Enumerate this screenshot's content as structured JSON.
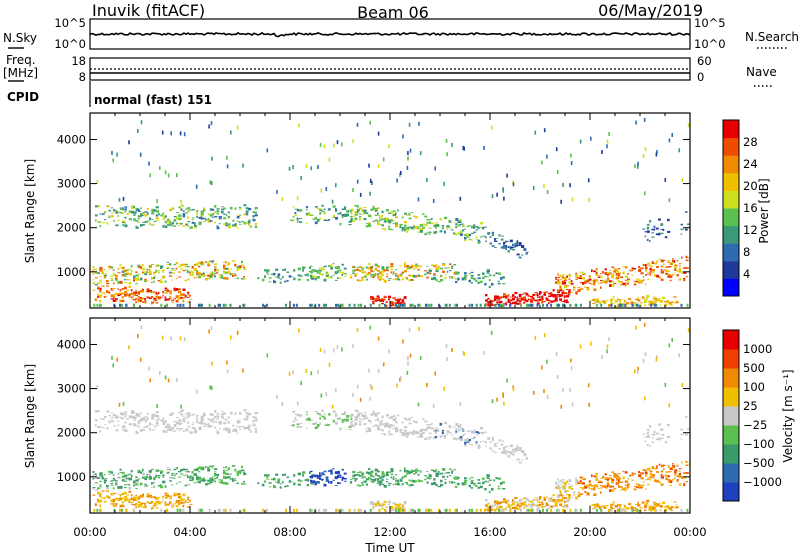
{
  "header": {
    "station": "Inuvik (fitACF)",
    "beam": "Beam 06",
    "date": "06/May/2019"
  },
  "noise_panel": {
    "left_label": "N.Sky",
    "right_label": "N.Search",
    "left_ticks": [
      "10^5",
      "10^0"
    ],
    "right_ticks": [
      "10^5",
      "10^0"
    ]
  },
  "freq_panel": {
    "left_label_line1": "Freq.",
    "left_label_line2": "[MHz]",
    "right_label": "Nave",
    "left_ticks": [
      "18",
      "8"
    ],
    "right_ticks": [
      "60",
      "0"
    ]
  },
  "cpid": {
    "label": "CPID",
    "value": "normal (fast) 151"
  },
  "colors": {
    "power_scale": [
      "#0000ff",
      "#1e3a9a",
      "#2f6bb0",
      "#3a9a78",
      "#5cc050",
      "#cfe020",
      "#f0c000",
      "#f08a00",
      "#ee4d00",
      "#e60000"
    ],
    "velocity_scale": [
      "#2040c0",
      "#2f6bb0",
      "#3a9a6a",
      "#5cc050",
      "#c8c8c8",
      "#f0c000",
      "#f08a00",
      "#f04000",
      "#e60000"
    ],
    "gray_data": "#c8c8c8"
  },
  "chart_data": [
    {
      "type": "heatmap",
      "name": "power",
      "ylabel": "Slant Range [km]",
      "yticks": [
        1000,
        2000,
        3000,
        4000
      ],
      "ylim": [
        180,
        4600
      ],
      "xlim": [
        0,
        24
      ],
      "xticks": [
        "00:00",
        "04:00",
        "08:00",
        "12:00",
        "16:00",
        "20:00",
        "00:00"
      ],
      "colorbar": {
        "label": "Power [dB]",
        "ticks": [
          "28",
          "24",
          "20",
          "16",
          "12",
          "8",
          "4"
        ],
        "range": [
          0,
          30
        ]
      }
    },
    {
      "type": "heatmap",
      "name": "velocity",
      "ylabel": "Slant Range [km]",
      "yticks": [
        1000,
        2000,
        3000,
        4000
      ],
      "ylim": [
        180,
        4600
      ],
      "xlim": [
        0,
        24
      ],
      "xticks": [
        "00:00",
        "04:00",
        "08:00",
        "12:00",
        "16:00",
        "20:00",
        "00:00"
      ],
      "xlabel": "Time UT",
      "colorbar": {
        "label": "Velocity [m s⁻¹]",
        "ticks": [
          "1000",
          "500",
          "100",
          "25",
          "−25",
          "−100",
          "−500",
          "−1000"
        ]
      }
    }
  ]
}
